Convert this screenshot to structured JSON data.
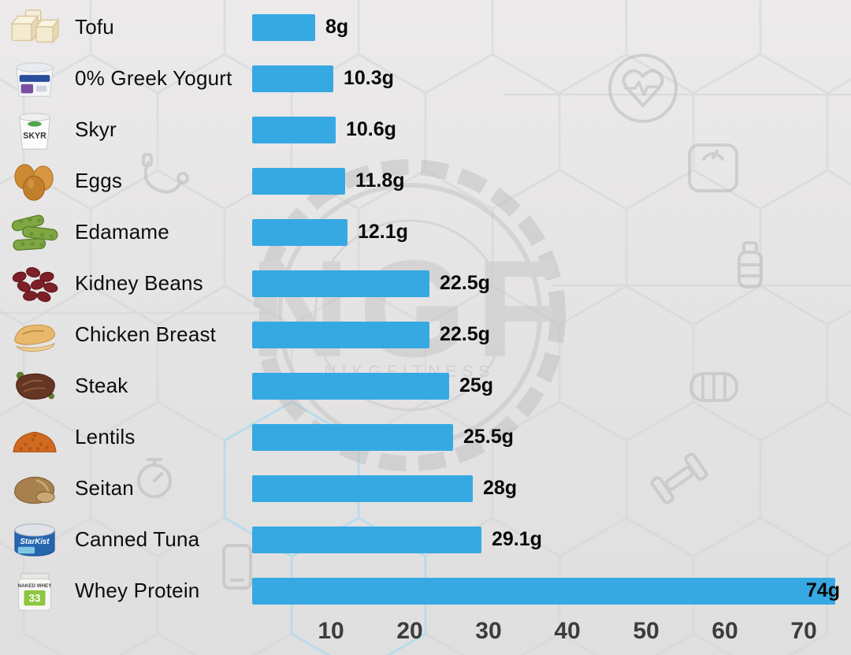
{
  "chart_data": {
    "type": "bar",
    "orientation": "horizontal",
    "title": "",
    "xlabel": "",
    "ylabel": "",
    "unit": "g",
    "grid": false,
    "legend": false,
    "bar_color": "#36a9e2",
    "xlim": [
      0,
      76
    ],
    "x_ticks": [
      10,
      20,
      30,
      40,
      50,
      60,
      70
    ],
    "categories": [
      "Tofu",
      "0% Greek Yogurt",
      "Skyr",
      "Eggs",
      "Edamame",
      "Kidney Beans",
      "Chicken Breast",
      "Steak",
      "Lentils",
      "Seitan",
      "Canned Tuna",
      "Whey Protein"
    ],
    "values": [
      8,
      10.3,
      10.6,
      11.8,
      12.1,
      22.5,
      22.5,
      25,
      25.5,
      28,
      29.1,
      74
    ],
    "rows": [
      {
        "label": "Tofu",
        "value": 8,
        "value_label": "8g",
        "icon": "tofu-icon"
      },
      {
        "label": "0% Greek Yogurt",
        "value": 10.3,
        "value_label": "10.3g",
        "icon": "greek-yogurt-icon"
      },
      {
        "label": "Skyr",
        "value": 10.6,
        "value_label": "10.6g",
        "icon": "skyr-icon"
      },
      {
        "label": "Eggs",
        "value": 11.8,
        "value_label": "11.8g",
        "icon": "eggs-icon"
      },
      {
        "label": "Edamame",
        "value": 12.1,
        "value_label": "12.1g",
        "icon": "edamame-icon"
      },
      {
        "label": "Kidney Beans",
        "value": 22.5,
        "value_label": "22.5g",
        "icon": "kidney-beans-icon"
      },
      {
        "label": "Chicken Breast",
        "value": 22.5,
        "value_label": "22.5g",
        "icon": "chicken-breast-icon"
      },
      {
        "label": "Steak",
        "value": 25,
        "value_label": "25g",
        "icon": "steak-icon"
      },
      {
        "label": "Lentils",
        "value": 25.5,
        "value_label": "25.5g",
        "icon": "lentils-icon"
      },
      {
        "label": "Seitan",
        "value": 28,
        "value_label": "28g",
        "icon": "seitan-icon"
      },
      {
        "label": "Canned Tuna",
        "value": 29.1,
        "value_label": "29.1g",
        "icon": "canned-tuna-icon"
      },
      {
        "label": "Whey Protein",
        "value": 74,
        "value_label": "74g",
        "icon": "whey-protein-icon"
      }
    ]
  },
  "watermark": {
    "logo_text": "NGF",
    "brand": "NIKGFITNESS",
    "icon_names": [
      "heart-rate-icon",
      "bathroom-scale-icon",
      "water-bottle-icon",
      "teeth-icon",
      "dumbbell-icon",
      "stopwatch-icon",
      "jump-rope-icon",
      "phone-icon"
    ],
    "hex_stroke_color": "#d3d2d2",
    "accent_hex_color": "#b5dcec"
  },
  "food_image_text": {
    "skyr": "SKYR",
    "tuna": "StarKist",
    "whey_name": "NAKED WHEY",
    "whey_number": "33"
  }
}
